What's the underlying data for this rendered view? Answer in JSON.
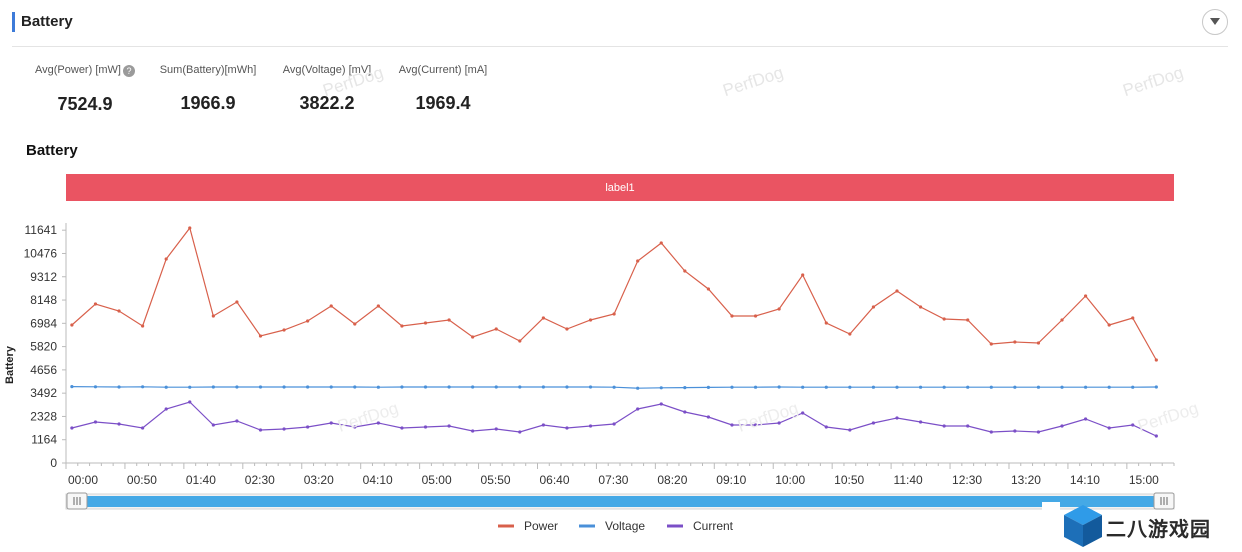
{
  "section": {
    "title": "Battery"
  },
  "stats": [
    {
      "label": "Avg(Power) [mW]",
      "value": "7524.9",
      "help": "?"
    },
    {
      "label": "Sum(Battery)[mWh]",
      "value": "1966.9"
    },
    {
      "label": "Avg(Voltage) [mV]",
      "value": "3822.2"
    },
    {
      "label": "Avg(Current) [mA]",
      "value": "1969.4"
    }
  ],
  "watermark": "PerfDog",
  "logo_text": "二八游戏园",
  "colors": {
    "power": "#d8604b",
    "voltage": "#4a90d9",
    "current": "#7b4fc7",
    "label_band": "#ea5462",
    "slider": "#45a9e6",
    "accent": "#3d7bd9"
  },
  "chart_data": {
    "type": "line",
    "title": "Battery",
    "band_label": "label1",
    "ylabel": "Battery",
    "xlabel": "",
    "ylim": [
      0,
      12000
    ],
    "yticks": [
      0,
      1164,
      2328,
      3492,
      4656,
      5820,
      6984,
      8148,
      9312,
      10476,
      11641
    ],
    "xticks": [
      "00:00",
      "00:50",
      "01:40",
      "02:30",
      "03:20",
      "04:10",
      "05:00",
      "05:50",
      "06:40",
      "07:30",
      "08:20",
      "09:10",
      "10:00",
      "10:50",
      "11:40",
      "12:30",
      "13:20",
      "14:10",
      "15:00"
    ],
    "x_range_seconds": [
      0,
      940
    ],
    "x_seconds": [
      5,
      25,
      45,
      65,
      85,
      105,
      125,
      145,
      165,
      185,
      205,
      225,
      245,
      265,
      285,
      305,
      325,
      345,
      365,
      385,
      405,
      425,
      445,
      465,
      485,
      505,
      525,
      545,
      565,
      585,
      605,
      625,
      645,
      665,
      685,
      705,
      725,
      745,
      765,
      785,
      805,
      825,
      845,
      865,
      885,
      905,
      925
    ],
    "legend": "bottom-center",
    "series": [
      {
        "name": "Power",
        "values": [
          6900,
          7950,
          7600,
          6850,
          10200,
          11750,
          7350,
          8050,
          6350,
          6650,
          7100,
          7850,
          6950,
          7850,
          6850,
          7000,
          7150,
          6300,
          6700,
          6100,
          7250,
          6700,
          7150,
          7450,
          10100,
          11000,
          9600,
          8700,
          7350,
          7350,
          7700,
          9400,
          7000,
          6450,
          7800,
          8600,
          7800,
          7200,
          7150,
          5950,
          6050,
          6000,
          7150,
          8350,
          6900,
          7250,
          5150
        ]
      },
      {
        "name": "Voltage",
        "values": [
          3820,
          3810,
          3800,
          3810,
          3790,
          3790,
          3800,
          3800,
          3800,
          3800,
          3800,
          3800,
          3800,
          3790,
          3800,
          3800,
          3800,
          3800,
          3800,
          3800,
          3800,
          3800,
          3800,
          3790,
          3740,
          3760,
          3770,
          3780,
          3790,
          3790,
          3800,
          3790,
          3790,
          3790,
          3790,
          3790,
          3790,
          3790,
          3790,
          3790,
          3790,
          3790,
          3790,
          3790,
          3790,
          3790,
          3800
        ]
      },
      {
        "name": "Current",
        "values": [
          1750,
          2050,
          1950,
          1750,
          2700,
          3050,
          1900,
          2100,
          1650,
          1700,
          1800,
          2000,
          1800,
          2000,
          1750,
          1800,
          1850,
          1600,
          1700,
          1550,
          1900,
          1750,
          1850,
          1950,
          2700,
          2950,
          2550,
          2300,
          1900,
          1900,
          2000,
          2500,
          1800,
          1650,
          2000,
          2250,
          2050,
          1850,
          1850,
          1550,
          1600,
          1550,
          1850,
          2200,
          1750,
          1900,
          1350
        ]
      }
    ]
  }
}
